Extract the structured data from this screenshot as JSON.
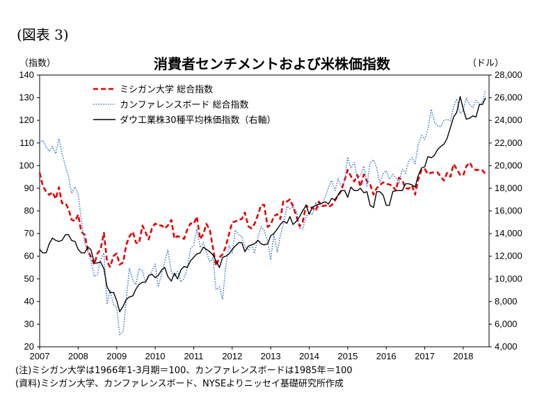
{
  "figure_label": "(図表 3)",
  "notes": [
    "(注)ミシガン大学は1966年1-3月期＝100、カンファレンスボードは1985年＝100",
    "(資料)ミシガン大学、カンファレンスボード、NYSEよりニッセイ基礎研究所作成"
  ],
  "chart_data": {
    "type": "line",
    "title": "消費者センチメントおよび米株価指数",
    "ylabel_left": "（指数）",
    "ylabel_right": "（ドル）",
    "x_tick_labels": [
      "2007",
      "2008",
      "2009",
      "2010",
      "2011",
      "2012",
      "2013",
      "2014",
      "2015",
      "2016",
      "2017",
      "2018"
    ],
    "x_range": [
      2007.0,
      2018.67
    ],
    "ylim_left": [
      20,
      140
    ],
    "yticks_left": [
      "20",
      "30",
      "40",
      "50",
      "60",
      "70",
      "80",
      "90",
      "100",
      "110",
      "120",
      "130",
      "140"
    ],
    "ylim_right": [
      4000,
      28000
    ],
    "yticks_right": [
      "4,000",
      "6,000",
      "8,000",
      "10,000",
      "12,000",
      "14,000",
      "16,000",
      "18,000",
      "20,000",
      "22,000",
      "24,000",
      "26,000",
      "28,000"
    ],
    "grid": false,
    "legend_position": "top-left",
    "series": [
      {
        "name": "ミシガン大学 総合指数",
        "axis": "left",
        "style": "dashed",
        "color": "#e00000",
        "x": [
          2007.0,
          2007.08,
          2007.17,
          2007.25,
          2007.33,
          2007.42,
          2007.5,
          2007.58,
          2007.67,
          2007.75,
          2007.83,
          2007.92,
          2008.0,
          2008.08,
          2008.17,
          2008.25,
          2008.33,
          2008.42,
          2008.5,
          2008.58,
          2008.67,
          2008.75,
          2008.83,
          2008.92,
          2009.0,
          2009.08,
          2009.17,
          2009.25,
          2009.33,
          2009.42,
          2009.5,
          2009.58,
          2009.67,
          2009.75,
          2009.83,
          2009.92,
          2010.0,
          2010.08,
          2010.17,
          2010.25,
          2010.33,
          2010.42,
          2010.5,
          2010.58,
          2010.67,
          2010.75,
          2010.83,
          2010.92,
          2011.0,
          2011.08,
          2011.17,
          2011.25,
          2011.33,
          2011.42,
          2011.5,
          2011.58,
          2011.67,
          2011.75,
          2011.83,
          2011.92,
          2012.0,
          2012.08,
          2012.17,
          2012.25,
          2012.33,
          2012.42,
          2012.5,
          2012.58,
          2012.67,
          2012.75,
          2012.83,
          2012.92,
          2013.0,
          2013.08,
          2013.17,
          2013.25,
          2013.33,
          2013.42,
          2013.5,
          2013.58,
          2013.67,
          2013.75,
          2013.83,
          2013.92,
          2014.0,
          2014.08,
          2014.17,
          2014.25,
          2014.33,
          2014.42,
          2014.5,
          2014.58,
          2014.67,
          2014.75,
          2014.83,
          2014.92,
          2015.0,
          2015.08,
          2015.17,
          2015.25,
          2015.33,
          2015.42,
          2015.5,
          2015.58,
          2015.67,
          2015.75,
          2015.83,
          2015.92,
          2016.0,
          2016.08,
          2016.17,
          2016.25,
          2016.33,
          2016.42,
          2016.5,
          2016.58,
          2016.67,
          2016.75,
          2016.83,
          2016.92,
          2017.0,
          2017.08,
          2017.17,
          2017.25,
          2017.33,
          2017.42,
          2017.5,
          2017.58,
          2017.67,
          2017.75,
          2017.83,
          2017.92,
          2018.0,
          2018.08,
          2018.17,
          2018.25,
          2018.33,
          2018.42,
          2018.5,
          2018.58
        ],
        "values": [
          96.9,
          91.3,
          88.4,
          87.1,
          88.3,
          85.3,
          90.4,
          83.4,
          83.4,
          80.9,
          76.1,
          75.5,
          78.4,
          70.8,
          69.5,
          62.6,
          59.8,
          56.4,
          61.2,
          63.0,
          70.3,
          57.6,
          55.3,
          60.1,
          61.2,
          56.3,
          57.3,
          65.1,
          68.7,
          70.8,
          66.0,
          65.7,
          73.5,
          70.6,
          67.4,
          72.5,
          74.4,
          73.6,
          73.6,
          72.2,
          73.6,
          76.0,
          67.8,
          68.9,
          68.2,
          67.7,
          71.6,
          74.5,
          74.2,
          77.5,
          67.5,
          69.8,
          74.3,
          71.5,
          63.7,
          55.7,
          59.5,
          60.8,
          64.1,
          69.9,
          75.0,
          75.3,
          76.2,
          76.4,
          79.3,
          73.2,
          72.3,
          74.3,
          78.3,
          82.6,
          82.7,
          72.9,
          73.8,
          77.6,
          78.6,
          76.4,
          84.5,
          84.1,
          85.1,
          82.1,
          77.5,
          73.2,
          75.1,
          82.5,
          81.2,
          81.6,
          80.0,
          84.1,
          81.9,
          82.5,
          81.8,
          82.5,
          84.6,
          86.9,
          88.8,
          93.6,
          98.1,
          95.4,
          93.0,
          95.9,
          90.7,
          96.1,
          93.1,
          91.9,
          87.2,
          90.0,
          91.3,
          92.6,
          92.0,
          91.7,
          91.0,
          89.0,
          94.7,
          93.5,
          90.0,
          89.8,
          91.2,
          87.2,
          93.8,
          98.2,
          98.5,
          96.3,
          96.9,
          97.0,
          97.1,
          95.0,
          93.4,
          96.8,
          95.1,
          100.7,
          98.5,
          95.9,
          95.7,
          99.7,
          101.4,
          98.8,
          98.0,
          98.2,
          97.9,
          96.2
        ]
      },
      {
        "name": "カンファレンスボード 総合指数",
        "axis": "left",
        "style": "dotted",
        "color": "#3a78c8",
        "x": [
          2007.0,
          2007.08,
          2007.17,
          2007.25,
          2007.33,
          2007.42,
          2007.5,
          2007.58,
          2007.67,
          2007.75,
          2007.83,
          2007.92,
          2008.0,
          2008.08,
          2008.17,
          2008.25,
          2008.33,
          2008.42,
          2008.5,
          2008.58,
          2008.67,
          2008.75,
          2008.83,
          2008.92,
          2009.0,
          2009.08,
          2009.17,
          2009.25,
          2009.33,
          2009.42,
          2009.5,
          2009.58,
          2009.67,
          2009.75,
          2009.83,
          2009.92,
          2010.0,
          2010.08,
          2010.17,
          2010.25,
          2010.33,
          2010.42,
          2010.5,
          2010.58,
          2010.67,
          2010.75,
          2010.83,
          2010.92,
          2011.0,
          2011.08,
          2011.17,
          2011.25,
          2011.33,
          2011.42,
          2011.5,
          2011.58,
          2011.67,
          2011.75,
          2011.83,
          2011.92,
          2012.0,
          2012.08,
          2012.17,
          2012.25,
          2012.33,
          2012.42,
          2012.5,
          2012.58,
          2012.67,
          2012.75,
          2012.83,
          2012.92,
          2013.0,
          2013.08,
          2013.17,
          2013.25,
          2013.33,
          2013.42,
          2013.5,
          2013.58,
          2013.67,
          2013.75,
          2013.83,
          2013.92,
          2014.0,
          2014.08,
          2014.17,
          2014.25,
          2014.33,
          2014.42,
          2014.5,
          2014.58,
          2014.67,
          2014.75,
          2014.83,
          2014.92,
          2015.0,
          2015.08,
          2015.17,
          2015.25,
          2015.33,
          2015.42,
          2015.5,
          2015.58,
          2015.67,
          2015.75,
          2015.83,
          2015.92,
          2016.0,
          2016.08,
          2016.17,
          2016.25,
          2016.33,
          2016.42,
          2016.5,
          2016.58,
          2016.67,
          2016.75,
          2016.83,
          2016.92,
          2017.0,
          2017.08,
          2017.17,
          2017.25,
          2017.33,
          2017.42,
          2017.5,
          2017.58,
          2017.67,
          2017.75,
          2017.83,
          2017.92,
          2018.0,
          2018.08,
          2018.17,
          2018.25,
          2018.33,
          2018.42,
          2018.5,
          2018.58
        ],
        "values": [
          110.2,
          111.2,
          108.2,
          106.3,
          108.5,
          105.3,
          111.9,
          105.6,
          99.5,
          95.2,
          87.8,
          90.6,
          87.3,
          76.4,
          65.9,
          62.3,
          58.1,
          51.0,
          51.9,
          58.5,
          61.4,
          38.8,
          44.7,
          38.6,
          37.7,
          25.3,
          26.9,
          40.8,
          54.8,
          49.3,
          47.4,
          54.5,
          53.4,
          48.7,
          50.6,
          53.6,
          56.5,
          46.4,
          52.3,
          57.7,
          62.7,
          52.9,
          51.0,
          53.2,
          48.6,
          50.2,
          54.3,
          63.4,
          64.8,
          72.0,
          63.8,
          66.0,
          61.7,
          57.6,
          59.2,
          45.2,
          46.4,
          40.9,
          55.2,
          64.8,
          61.5,
          71.6,
          69.5,
          68.7,
          64.4,
          62.7,
          65.4,
          61.3,
          68.4,
          73.1,
          71.5,
          66.7,
          58.4,
          69.6,
          61.9,
          69.0,
          74.3,
          82.1,
          81.0,
          81.8,
          79.7,
          72.4,
          72.0,
          77.5,
          79.4,
          78.3,
          83.9,
          81.7,
          82.2,
          86.4,
          90.3,
          93.4,
          89.0,
          94.1,
          91.0,
          93.1,
          103.8,
          98.8,
          101.4,
          94.3,
          95.8,
          99.8,
          91.0,
          101.3,
          102.6,
          99.1,
          92.6,
          96.3,
          97.8,
          94.0,
          96.1,
          94.7,
          92.4,
          98.4,
          96.7,
          101.8,
          103.5,
          100.8,
          109.4,
          113.3,
          111.6,
          116.1,
          124.9,
          119.4,
          117.6,
          117.3,
          120.0,
          120.4,
          119.8,
          126.2,
          129.5,
          123.1,
          124.3,
          130.0,
          127.0,
          125.6,
          128.8,
          127.1,
          127.9,
          133.4
        ]
      },
      {
        "name": "ダウ工業株30種平均株価指数（右軸）",
        "axis": "right",
        "style": "solid",
        "color": "#000000",
        "x": [
          2007.0,
          2007.08,
          2007.17,
          2007.25,
          2007.33,
          2007.42,
          2007.5,
          2007.58,
          2007.67,
          2007.75,
          2007.83,
          2007.92,
          2008.0,
          2008.08,
          2008.17,
          2008.25,
          2008.33,
          2008.42,
          2008.5,
          2008.58,
          2008.67,
          2008.75,
          2008.83,
          2008.92,
          2009.0,
          2009.08,
          2009.17,
          2009.25,
          2009.33,
          2009.42,
          2009.5,
          2009.58,
          2009.67,
          2009.75,
          2009.83,
          2009.92,
          2010.0,
          2010.08,
          2010.17,
          2010.25,
          2010.33,
          2010.42,
          2010.5,
          2010.58,
          2010.67,
          2010.75,
          2010.83,
          2010.92,
          2011.0,
          2011.08,
          2011.17,
          2011.25,
          2011.33,
          2011.42,
          2011.5,
          2011.58,
          2011.67,
          2011.75,
          2011.83,
          2011.92,
          2012.0,
          2012.08,
          2012.17,
          2012.25,
          2012.33,
          2012.42,
          2012.5,
          2012.58,
          2012.67,
          2012.75,
          2012.83,
          2012.92,
          2013.0,
          2013.08,
          2013.17,
          2013.25,
          2013.33,
          2013.42,
          2013.5,
          2013.58,
          2013.67,
          2013.75,
          2013.83,
          2013.92,
          2014.0,
          2014.08,
          2014.17,
          2014.25,
          2014.33,
          2014.42,
          2014.5,
          2014.58,
          2014.67,
          2014.75,
          2014.83,
          2014.92,
          2015.0,
          2015.08,
          2015.17,
          2015.25,
          2015.33,
          2015.42,
          2015.5,
          2015.58,
          2015.67,
          2015.75,
          2015.83,
          2015.92,
          2016.0,
          2016.08,
          2016.17,
          2016.25,
          2016.33,
          2016.42,
          2016.5,
          2016.58,
          2016.67,
          2016.75,
          2016.83,
          2016.92,
          2017.0,
          2017.08,
          2017.17,
          2017.25,
          2017.33,
          2017.42,
          2017.5,
          2017.58,
          2017.67,
          2017.75,
          2017.83,
          2017.92,
          2018.0,
          2018.08,
          2018.17,
          2018.25,
          2018.33,
          2018.42,
          2018.5,
          2018.58
        ],
        "values": [
          12600,
          12300,
          12300,
          13100,
          13600,
          13400,
          13300,
          13400,
          13900,
          13900,
          13400,
          13300,
          12600,
          12300,
          12300,
          12800,
          12600,
          11400,
          11400,
          11500,
          10900,
          9300,
          8800,
          8800,
          8100,
          7100,
          7600,
          8200,
          8400,
          8500,
          9100,
          9500,
          9700,
          9700,
          10300,
          10400,
          10100,
          10300,
          10800,
          11000,
          10200,
          9800,
          10500,
          10000,
          10800,
          11100,
          11000,
          11600,
          11900,
          12200,
          12300,
          12800,
          12600,
          12400,
          12100,
          11600,
          11000,
          11900,
          12000,
          12200,
          12600,
          12900,
          13200,
          13200,
          12400,
          12900,
          13000,
          13100,
          13400,
          13100,
          13000,
          13100,
          13800,
          14000,
          14400,
          14800,
          15100,
          14900,
          15500,
          14800,
          15100,
          15500,
          16000,
          16500,
          15700,
          16300,
          16500,
          16600,
          16700,
          16800,
          16600,
          17100,
          17000,
          17400,
          17800,
          17800,
          17200,
          18100,
          17800,
          17800,
          18000,
          17600,
          17700,
          16500,
          16300,
          17700,
          17700,
          17400,
          16500,
          16500,
          17700,
          17800,
          17800,
          17800,
          18400,
          18400,
          18300,
          18100,
          19100,
          19800,
          19900,
          20800,
          20700,
          20900,
          21400,
          21700,
          21900,
          22400,
          23400,
          24300,
          24700,
          26100,
          25000,
          24100,
          24200,
          24400,
          24300,
          25400,
          25400,
          26000
        ]
      }
    ]
  }
}
